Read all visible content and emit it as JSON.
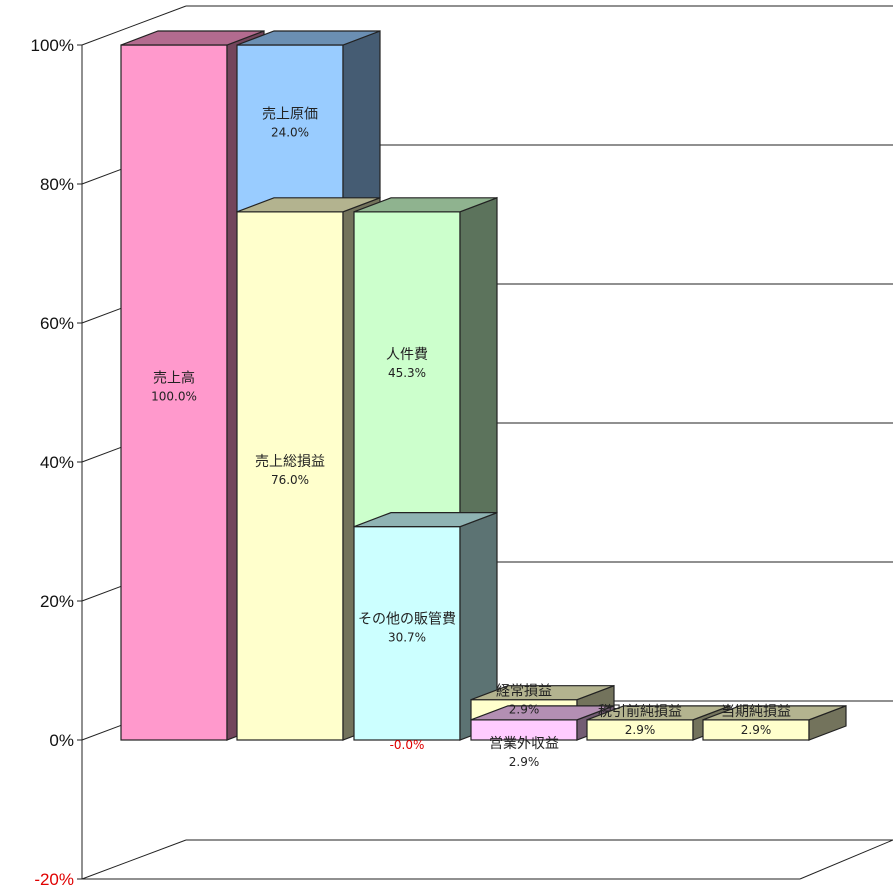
{
  "chart_data": {
    "type": "bar",
    "title": "",
    "xlabel": "",
    "ylabel": "",
    "ylim": [
      -20,
      100
    ],
    "yticks": [
      "100%",
      "80%",
      "60%",
      "40%",
      "20%",
      "0%",
      "-20%"
    ],
    "grid": true,
    "legend": "none",
    "segments": [
      {
        "name": "売上高",
        "label": "100.0%",
        "column": 0,
        "bottom": 0,
        "top": 100,
        "color": "#ff99cc"
      },
      {
        "name": "売上原価",
        "label": "24.0%",
        "column": 1,
        "bottom": 76,
        "top": 100,
        "color": "#99ccff"
      },
      {
        "name": "売上総損益",
        "label": "76.0%",
        "column": 1,
        "bottom": 0,
        "top": 76,
        "color": "#ffffcc"
      },
      {
        "name": "人件費",
        "label": "45.3%",
        "column": 2,
        "bottom": 30.7,
        "top": 76,
        "color": "#ccffcc"
      },
      {
        "name": "その他の販管費",
        "label": "30.7%",
        "column": 2,
        "bottom": 0,
        "top": 30.7,
        "color": "#ccffff"
      },
      {
        "name": "",
        "label": "-0.0%",
        "column": 2,
        "bottom": 0,
        "top": 0,
        "color": "#ff0000"
      },
      {
        "name": "経常損益",
        "label": "2.9%",
        "column": 3,
        "bottom": 2.9,
        "top": 5.8,
        "color": "#ffffcc"
      },
      {
        "name": "営業外収益",
        "label": "2.9%",
        "column": 3,
        "bottom": 0,
        "top": 2.9,
        "color": "#ffccff"
      },
      {
        "name": "税引前純損益",
        "label": "2.9%",
        "column": 4,
        "bottom": 0,
        "top": 2.9,
        "color": "#ffffcc"
      },
      {
        "name": "当期純損益",
        "label": "2.9%",
        "column": 5,
        "bottom": 0,
        "top": 2.9,
        "color": "#ffffcc"
      }
    ]
  }
}
